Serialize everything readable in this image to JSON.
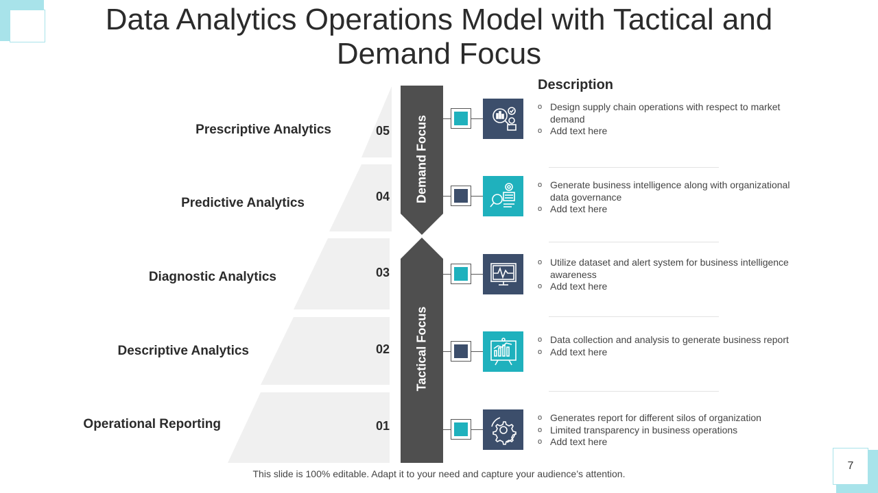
{
  "title": "Data Analytics Operations Model with Tactical and Demand Focus",
  "page_number": "7",
  "description_heading": "Description",
  "footer": "This slide is 100% editable. Adapt it to your need and capture your audience’s attention.",
  "focus": {
    "demand": "Demand Focus",
    "tactical": "Tactical Focus"
  },
  "colors": {
    "accent": "#1fb1bd",
    "navy": "#3c4e6b",
    "bar": "#4f4f4f",
    "pyramid": "#f0f0f0",
    "corner": "#a8e3ea"
  },
  "levels": [
    {
      "num": "05",
      "label": "Prescriptive Analytics",
      "icon": "analytics-magnifier-icon",
      "icon_color": "navy",
      "square_color": "accent",
      "bullets": [
        "Design supply chain operations with respect to market demand",
        "Add text here"
      ]
    },
    {
      "num": "04",
      "label": "Predictive Analytics",
      "icon": "data-search-icon",
      "icon_color": "accent",
      "square_color": "navy",
      "bullets": [
        "Generate business intelligence along with organizational data governance",
        "Add text here"
      ]
    },
    {
      "num": "03",
      "label": "Diagnostic Analytics",
      "icon": "monitor-pulse-icon",
      "icon_color": "navy",
      "square_color": "accent",
      "bullets": [
        "Utilize dataset and alert system for business intelligence awareness",
        "Add text here"
      ]
    },
    {
      "num": "02",
      "label": "Descriptive Analytics",
      "icon": "report-board-icon",
      "icon_color": "accent",
      "square_color": "navy",
      "bullets": [
        "Data collection and analysis to generate business report",
        "Add text here"
      ]
    },
    {
      "num": "01",
      "label": "Operational Reporting",
      "icon": "gear-cycle-icon",
      "icon_color": "navy",
      "square_color": "accent",
      "bullets": [
        "Generates report for different silos of organization",
        "Limited transparency in business operations",
        "Add text here"
      ]
    }
  ]
}
